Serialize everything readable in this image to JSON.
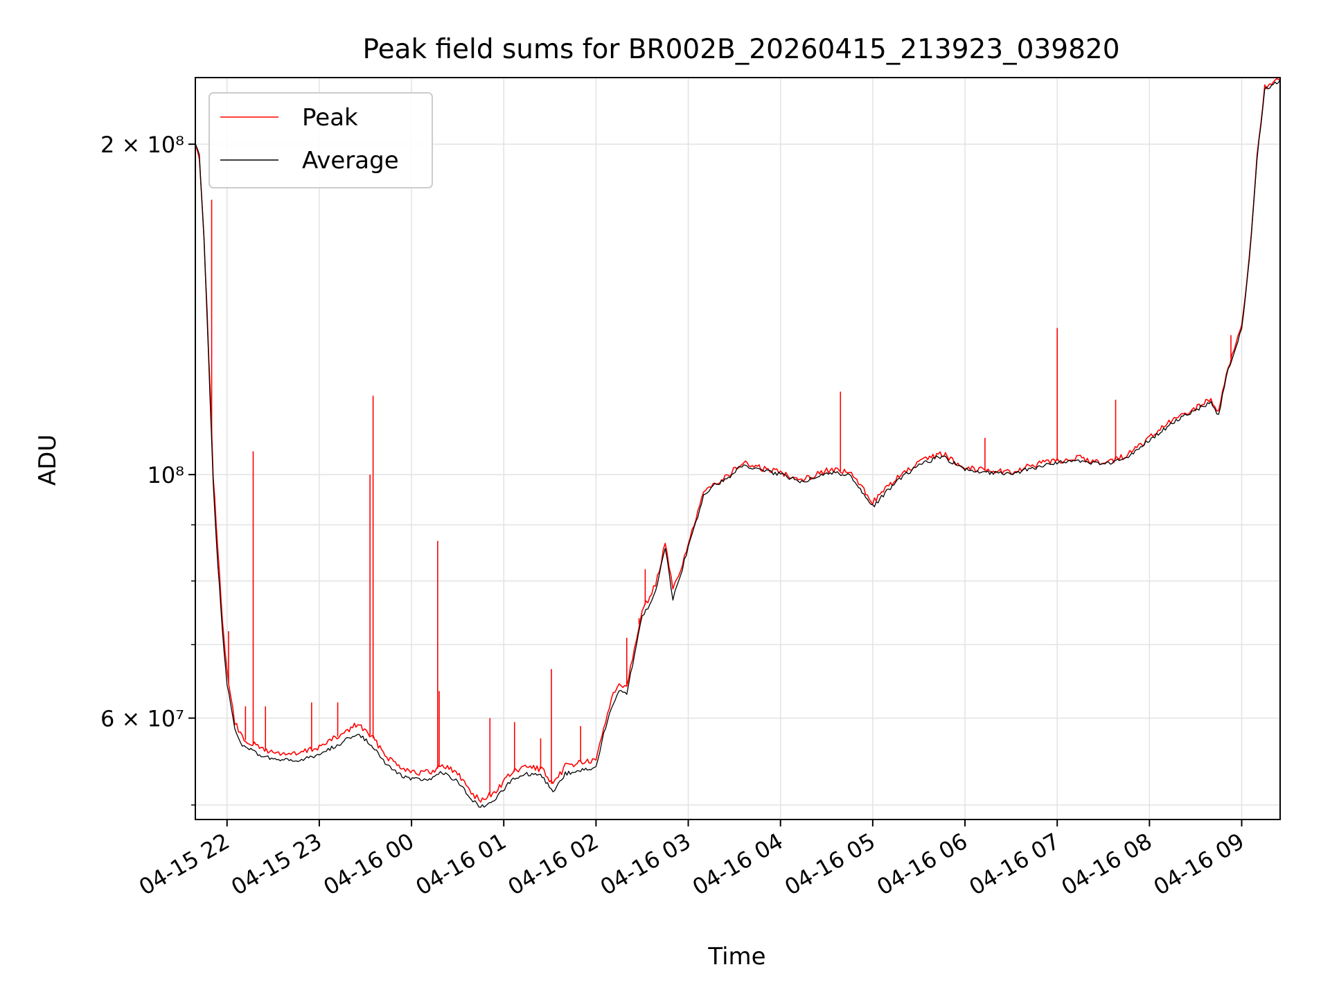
{
  "chart_data": {
    "type": "line",
    "title": "Peak field sums for BR002B_20260415_213923_039820",
    "xlabel": "Time",
    "ylabel": "ADU",
    "y_scale": "log",
    "grid": true,
    "legend_position": "top-left",
    "xlim": [
      "2026-04-15 21:39:23",
      "2026-04-16 09:25:00"
    ],
    "ylim": [
      48500000,
      230000000
    ],
    "x_ticks": [
      {
        "label": "04-15 22",
        "time": "2026-04-15 22:00"
      },
      {
        "label": "04-15 23",
        "time": "2026-04-15 23:00"
      },
      {
        "label": "04-16 00",
        "time": "2026-04-16 00:00"
      },
      {
        "label": "04-16 01",
        "time": "2026-04-16 01:00"
      },
      {
        "label": "04-16 02",
        "time": "2026-04-16 02:00"
      },
      {
        "label": "04-16 03",
        "time": "2026-04-16 03:00"
      },
      {
        "label": "04-16 04",
        "time": "2026-04-16 04:00"
      },
      {
        "label": "04-16 05",
        "time": "2026-04-16 05:00"
      },
      {
        "label": "04-16 06",
        "time": "2026-04-16 06:00"
      },
      {
        "label": "04-16 07",
        "time": "2026-04-16 07:00"
      },
      {
        "label": "04-16 08",
        "time": "2026-04-16 08:00"
      },
      {
        "label": "04-16 09",
        "time": "2026-04-16 09:00"
      }
    ],
    "y_major_ticks": [
      {
        "label": "6 × 10⁷",
        "value": 60000000
      },
      {
        "label": "10⁸",
        "value": 100000000
      },
      {
        "label": "2 × 10⁸",
        "value": 200000000
      }
    ],
    "y_minor_ticks": [
      50000000,
      70000000,
      80000000,
      90000000
    ],
    "series": [
      {
        "name": "Peak",
        "color": "#ff0000",
        "points": [
          [
            "2026-04-15 21:39",
            200000000
          ],
          [
            "2026-04-15 21:42",
            195000000
          ],
          [
            "2026-04-15 21:45",
            165000000
          ],
          [
            "2026-04-15 21:48",
            130000000
          ],
          [
            "2026-04-15 21:51",
            100000000
          ],
          [
            "2026-04-15 21:54",
            85000000
          ],
          [
            "2026-04-15 21:57",
            74000000
          ],
          [
            "2026-04-15 22:00",
            66000000
          ],
          [
            "2026-04-15 22:05",
            59500000
          ],
          [
            "2026-04-15 22:10",
            57500000
          ],
          [
            "2026-04-15 22:20",
            56500000
          ],
          [
            "2026-04-15 22:30",
            55800000
          ],
          [
            "2026-04-15 22:45",
            55600000
          ],
          [
            "2026-04-15 23:00",
            56500000
          ],
          [
            "2026-04-15 23:15",
            58000000
          ],
          [
            "2026-04-15 23:25",
            59300000
          ],
          [
            "2026-04-15 23:35",
            57500000
          ],
          [
            "2026-04-15 23:45",
            55200000
          ],
          [
            "2026-04-15 23:55",
            54000000
          ],
          [
            "2026-04-16 00:05",
            53500000
          ],
          [
            "2026-04-16 00:15",
            53600000
          ],
          [
            "2026-04-16 00:20",
            54500000
          ],
          [
            "2026-04-16 00:30",
            53400000
          ],
          [
            "2026-04-16 00:40",
            51200000
          ],
          [
            "2026-04-16 00:45",
            50400000
          ],
          [
            "2026-04-16 00:55",
            51500000
          ],
          [
            "2026-04-16 01:05",
            53500000
          ],
          [
            "2026-04-16 01:15",
            54200000
          ],
          [
            "2026-04-16 01:25",
            53900000
          ],
          [
            "2026-04-16 01:32",
            52000000
          ],
          [
            "2026-04-16 01:40",
            54300000
          ],
          [
            "2026-04-16 01:50",
            54700000
          ],
          [
            "2026-04-16 02:00",
            54800000
          ],
          [
            "2026-04-16 02:05",
            58800000
          ],
          [
            "2026-04-16 02:10",
            62500000
          ],
          [
            "2026-04-16 02:15",
            64500000
          ],
          [
            "2026-04-16 02:20",
            64300000
          ],
          [
            "2026-04-16 02:25",
            69500000
          ],
          [
            "2026-04-16 02:30",
            75500000
          ],
          [
            "2026-04-16 02:35",
            77000000
          ],
          [
            "2026-04-16 02:40",
            80500000
          ],
          [
            "2026-04-16 02:45",
            86500000
          ],
          [
            "2026-04-16 02:50",
            78500000
          ],
          [
            "2026-04-16 02:55",
            82000000
          ],
          [
            "2026-04-16 03:00",
            86500000
          ],
          [
            "2026-04-16 03:05",
            91000000
          ],
          [
            "2026-04-16 03:10",
            96000000
          ],
          [
            "2026-04-16 03:15",
            98000000
          ],
          [
            "2026-04-16 03:25",
            99500000
          ],
          [
            "2026-04-16 03:35",
            102500000
          ],
          [
            "2026-04-16 03:45",
            101500000
          ],
          [
            "2026-04-16 04:00",
            100500000
          ],
          [
            "2026-04-16 04:15",
            99000000
          ],
          [
            "2026-04-16 04:30",
            101000000
          ],
          [
            "2026-04-16 04:45",
            100500000
          ],
          [
            "2026-04-16 05:00",
            94500000
          ],
          [
            "2026-04-16 05:15",
            99000000
          ],
          [
            "2026-04-16 05:30",
            102500000
          ],
          [
            "2026-04-16 05:45",
            104500000
          ],
          [
            "2026-04-16 06:00",
            101500000
          ],
          [
            "2026-04-16 06:15",
            101000000
          ],
          [
            "2026-04-16 06:30",
            100500000
          ],
          [
            "2026-04-16 06:45",
            102000000
          ],
          [
            "2026-04-16 07:00",
            103000000
          ],
          [
            "2026-04-16 07:15",
            103500000
          ],
          [
            "2026-04-16 07:30",
            102500000
          ],
          [
            "2026-04-16 07:45",
            104000000
          ],
          [
            "2026-04-16 08:00",
            108000000
          ],
          [
            "2026-04-16 08:15",
            112000000
          ],
          [
            "2026-04-16 08:30",
            115000000
          ],
          [
            "2026-04-16 08:40",
            117000000
          ],
          [
            "2026-04-16 08:45",
            114000000
          ],
          [
            "2026-04-16 08:50",
            124000000
          ],
          [
            "2026-04-16 08:55",
            130000000
          ],
          [
            "2026-04-16 09:00",
            136000000
          ],
          [
            "2026-04-16 09:05",
            158000000
          ],
          [
            "2026-04-16 09:10",
            195000000
          ],
          [
            "2026-04-16 09:15",
            225000000
          ],
          [
            "2026-04-16 09:25",
            229000000
          ]
        ],
        "spikes": [
          [
            "2026-04-15 21:50",
            178000000
          ],
          [
            "2026-04-15 22:01",
            72000000
          ],
          [
            "2026-04-15 22:12",
            61500000
          ],
          [
            "2026-04-15 22:17",
            105000000
          ],
          [
            "2026-04-15 22:25",
            61500000
          ],
          [
            "2026-04-15 22:55",
            62000000
          ],
          [
            "2026-04-15 23:12",
            62000000
          ],
          [
            "2026-04-15 23:33",
            100000000
          ],
          [
            "2026-04-15 23:35",
            118000000
          ],
          [
            "2026-04-16 00:17",
            87000000
          ],
          [
            "2026-04-16 00:18",
            63500000
          ],
          [
            "2026-04-16 00:51",
            60000000
          ],
          [
            "2026-04-16 01:07",
            59500000
          ],
          [
            "2026-04-16 01:24",
            57500000
          ],
          [
            "2026-04-16 01:31",
            66500000
          ],
          [
            "2026-04-16 01:50",
            59000000
          ],
          [
            "2026-04-16 02:20",
            71000000
          ],
          [
            "2026-04-16 02:28",
            74000000
          ],
          [
            "2026-04-16 02:32",
            82000000
          ],
          [
            "2026-04-16 04:39",
            119000000
          ],
          [
            "2026-04-16 06:13",
            108000000
          ],
          [
            "2026-04-16 07:00",
            136000000
          ],
          [
            "2026-04-16 07:38",
            117000000
          ],
          [
            "2026-04-16 08:53",
            134000000
          ]
        ]
      },
      {
        "name": "Average",
        "color": "#000000",
        "points": [
          [
            "2026-04-15 21:39",
            201000000
          ],
          [
            "2026-04-15 21:42",
            195000000
          ],
          [
            "2026-04-15 21:45",
            164000000
          ],
          [
            "2026-04-15 21:48",
            128000000
          ],
          [
            "2026-04-15 21:51",
            98000000
          ],
          [
            "2026-04-15 21:54",
            83000000
          ],
          [
            "2026-04-15 21:57",
            72000000
          ],
          [
            "2026-04-15 22:00",
            64500000
          ],
          [
            "2026-04-15 22:05",
            58500000
          ],
          [
            "2026-04-15 22:10",
            56700000
          ],
          [
            "2026-04-15 22:20",
            55600000
          ],
          [
            "2026-04-15 22:30",
            55000000
          ],
          [
            "2026-04-15 22:45",
            54800000
          ],
          [
            "2026-04-15 23:00",
            55600000
          ],
          [
            "2026-04-15 23:15",
            57000000
          ],
          [
            "2026-04-15 23:25",
            58200000
          ],
          [
            "2026-04-15 23:35",
            56500000
          ],
          [
            "2026-04-15 23:45",
            54200000
          ],
          [
            "2026-04-15 23:55",
            53000000
          ],
          [
            "2026-04-16 00:05",
            52700000
          ],
          [
            "2026-04-16 00:15",
            52900000
          ],
          [
            "2026-04-16 00:20",
            53600000
          ],
          [
            "2026-04-16 00:30",
            52500000
          ],
          [
            "2026-04-16 00:40",
            50500000
          ],
          [
            "2026-04-16 00:45",
            49700000
          ],
          [
            "2026-04-16 00:55",
            50700000
          ],
          [
            "2026-04-16 01:05",
            52700000
          ],
          [
            "2026-04-16 01:15",
            53300000
          ],
          [
            "2026-04-16 01:25",
            53100000
          ],
          [
            "2026-04-16 01:32",
            51400000
          ],
          [
            "2026-04-16 01:40",
            53400000
          ],
          [
            "2026-04-16 01:50",
            53800000
          ],
          [
            "2026-04-16 02:00",
            54000000
          ],
          [
            "2026-04-16 02:05",
            58000000
          ],
          [
            "2026-04-16 02:10",
            61500000
          ],
          [
            "2026-04-16 02:15",
            63500000
          ],
          [
            "2026-04-16 02:20",
            63200000
          ],
          [
            "2026-04-16 02:25",
            68500000
          ],
          [
            "2026-04-16 02:30",
            74500000
          ],
          [
            "2026-04-16 02:35",
            76000000
          ],
          [
            "2026-04-16 02:40",
            79500000
          ],
          [
            "2026-04-16 02:45",
            86000000
          ],
          [
            "2026-04-16 02:50",
            77000000
          ],
          [
            "2026-04-16 02:55",
            81000000
          ],
          [
            "2026-04-16 03:00",
            86000000
          ],
          [
            "2026-04-16 03:05",
            90500000
          ],
          [
            "2026-04-16 03:10",
            95500000
          ],
          [
            "2026-04-16 03:15",
            97500000
          ],
          [
            "2026-04-16 03:25",
            99000000
          ],
          [
            "2026-04-16 03:35",
            102000000
          ],
          [
            "2026-04-16 03:45",
            101000000
          ],
          [
            "2026-04-16 04:00",
            100000000
          ],
          [
            "2026-04-16 04:15",
            98500000
          ],
          [
            "2026-04-16 04:30",
            100500000
          ],
          [
            "2026-04-16 04:45",
            100000000
          ],
          [
            "2026-04-16 05:00",
            93500000
          ],
          [
            "2026-04-16 05:15",
            98500000
          ],
          [
            "2026-04-16 05:30",
            102000000
          ],
          [
            "2026-04-16 05:45",
            104000000
          ],
          [
            "2026-04-16 06:00",
            101000000
          ],
          [
            "2026-04-16 06:15",
            100500000
          ],
          [
            "2026-04-16 06:30",
            100000000
          ],
          [
            "2026-04-16 06:45",
            101500000
          ],
          [
            "2026-04-16 07:00",
            102500000
          ],
          [
            "2026-04-16 07:15",
            103000000
          ],
          [
            "2026-04-16 07:30",
            102000000
          ],
          [
            "2026-04-16 07:45",
            103500000
          ],
          [
            "2026-04-16 08:00",
            107500000
          ],
          [
            "2026-04-16 08:15",
            111500000
          ],
          [
            "2026-04-16 08:30",
            114500000
          ],
          [
            "2026-04-16 08:40",
            116500000
          ],
          [
            "2026-04-16 08:45",
            113000000
          ],
          [
            "2026-04-16 08:50",
            123000000
          ],
          [
            "2026-04-16 08:55",
            129500000
          ],
          [
            "2026-04-16 09:00",
            135500000
          ],
          [
            "2026-04-16 09:05",
            157000000
          ],
          [
            "2026-04-16 09:10",
            194000000
          ],
          [
            "2026-04-16 09:15",
            224000000
          ],
          [
            "2026-04-16 09:25",
            229000000
          ]
        ]
      }
    ]
  }
}
